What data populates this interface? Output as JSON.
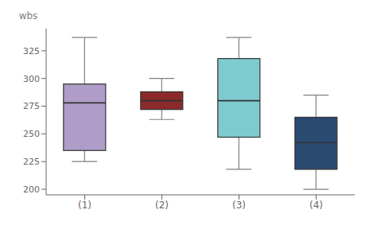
{
  "chart_data": {
    "type": "box",
    "categories": [
      "(1)",
      "(2)",
      "(3)",
      "(4)"
    ],
    "whisker_low": [
      225,
      263,
      218,
      200
    ],
    "q1": [
      235,
      272,
      247,
      218
    ],
    "median": [
      278,
      280,
      280,
      242
    ],
    "q3": [
      295,
      288,
      318,
      265
    ],
    "whisker_high": [
      337,
      300,
      337,
      285
    ],
    "colors": [
      "#b09cc8",
      "#8b2a2a",
      "#7ecbcf",
      "#2a4a72"
    ],
    "ylabel": "wbs",
    "ylim": [
      195,
      345
    ],
    "yticks": [
      200,
      225,
      250,
      275,
      300,
      325
    ],
    "grid": false
  }
}
